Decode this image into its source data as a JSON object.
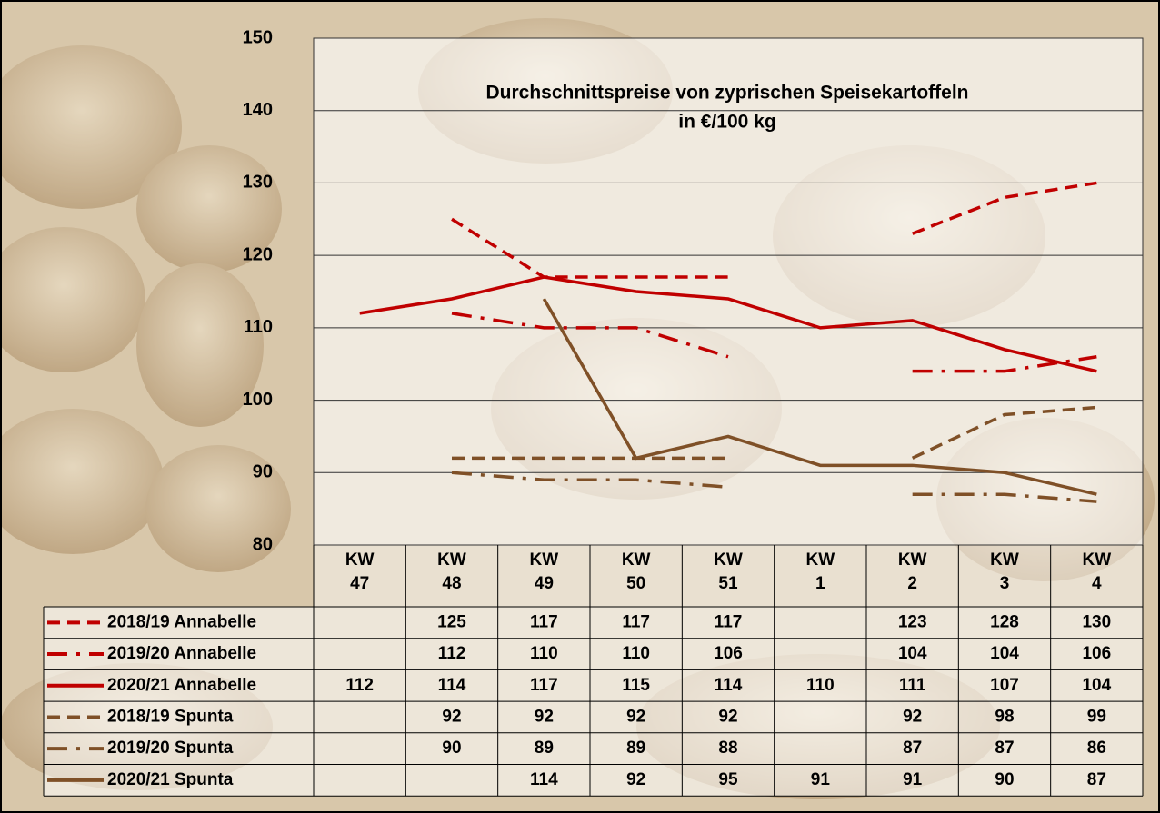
{
  "chart_data": {
    "type": "line",
    "title": "Durchschnittspreise von zyprischen Speisekartoffeln",
    "subtitle": "in €/100 kg",
    "categories": [
      "KW 47",
      "KW 48",
      "KW 49",
      "KW 50",
      "KW 51",
      "KW 1",
      "KW 2",
      "KW 3",
      "KW 4"
    ],
    "series": [
      {
        "name": "2018/19 Annabelle",
        "color": "#c00000",
        "style": "dashed",
        "values": [
          null,
          125,
          117,
          117,
          117,
          null,
          123,
          128,
          130
        ]
      },
      {
        "name": "2019/20 Annabelle",
        "color": "#c00000",
        "style": "dash-dot",
        "values": [
          null,
          112,
          110,
          110,
          106,
          null,
          104,
          104,
          106
        ]
      },
      {
        "name": "2020/21 Annabelle",
        "color": "#c00000",
        "style": "solid",
        "values": [
          112,
          114,
          117,
          115,
          114,
          110,
          111,
          107,
          104
        ]
      },
      {
        "name": "2018/19 Spunta",
        "color": "#7f5027",
        "style": "dashed",
        "values": [
          null,
          92,
          92,
          92,
          92,
          null,
          92,
          98,
          99
        ]
      },
      {
        "name": "2019/20 Spunta",
        "color": "#7f5027",
        "style": "dash-dot",
        "values": [
          null,
          90,
          89,
          89,
          88,
          null,
          87,
          87,
          86
        ]
      },
      {
        "name": "2020/21 Spunta",
        "color": "#7f5027",
        "style": "solid",
        "values": [
          null,
          null,
          114,
          92,
          95,
          91,
          91,
          90,
          87
        ]
      }
    ],
    "ylim": [
      80,
      150
    ],
    "yticks": [
      80,
      90,
      100,
      110,
      120,
      130,
      140,
      150
    ],
    "grid": true
  }
}
